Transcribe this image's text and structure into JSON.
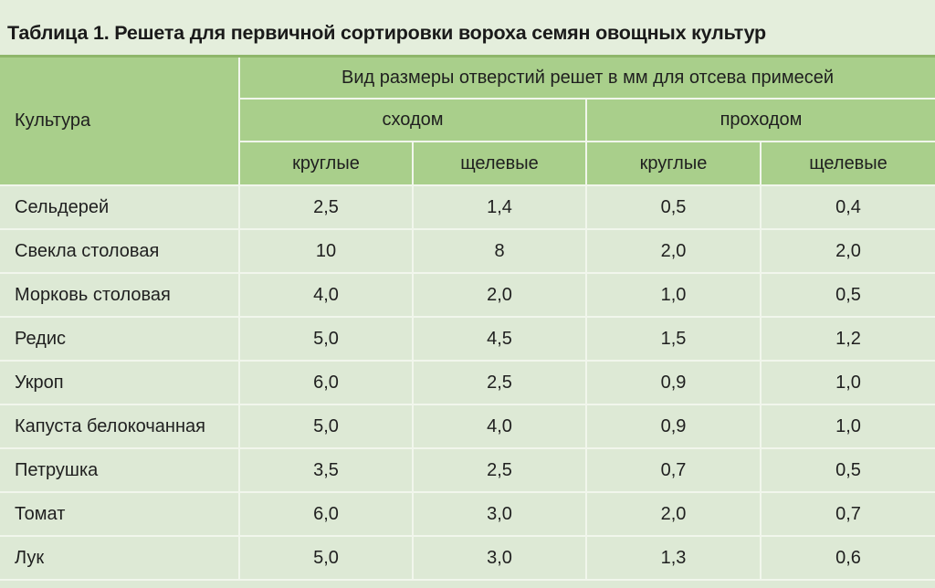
{
  "title": "Таблица 1. Решета для первичной сортировки вороха семян овощных культур",
  "header": {
    "culture": "Культура",
    "group": "Вид размеры отверстий решет в мм для отсева примесей",
    "overflow": "сходом",
    "through": "проходом",
    "round_1": "круглые",
    "slot_1": "щелевые",
    "round_2": "круглые",
    "slot_2": "щелевые"
  },
  "rows": [
    {
      "name": "Сельдерей",
      "v": [
        "2,5",
        "1,4",
        "0,5",
        "0,4"
      ]
    },
    {
      "name": "Свекла столовая",
      "v": [
        "10",
        "8",
        "2,0",
        "2,0"
      ]
    },
    {
      "name": "Морковь столовая",
      "v": [
        "4,0",
        "2,0",
        "1,0",
        "0,5"
      ]
    },
    {
      "name": "Редис",
      "v": [
        "5,0",
        "4,5",
        "1,5",
        "1,2"
      ]
    },
    {
      "name": "Укроп",
      "v": [
        "6,0",
        "2,5",
        "0,9",
        "1,0"
      ]
    },
    {
      "name": "Капуста белокочанная",
      "v": [
        "5,0",
        "4,0",
        "0,9",
        "1,0"
      ]
    },
    {
      "name": "Петрушка",
      "v": [
        "3,5",
        "2,5",
        "0,7",
        "0,5"
      ]
    },
    {
      "name": "Томат",
      "v": [
        "6,0",
        "3,0",
        "2,0",
        "0,7"
      ]
    },
    {
      "name": "Лук",
      "v": [
        "5,0",
        "3,0",
        "1,3",
        "0,6"
      ]
    }
  ]
}
